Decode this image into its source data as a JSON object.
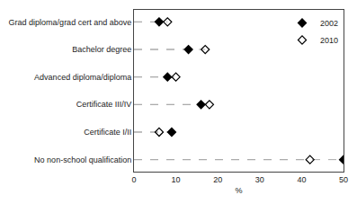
{
  "chart_data": {
    "type": "dot",
    "xlabel": "%",
    "categories": [
      "Grad diploma/grad cert and above",
      "Bachelor degree",
      "Advanced diploma/diploma",
      "Certificate III/IV",
      "Certificate I/II",
      "No non-school qualification"
    ],
    "series": [
      {
        "name": "2002",
        "color": "#000000",
        "marker": "diamond",
        "values": [
          6,
          13,
          8,
          16,
          9,
          50
        ]
      },
      {
        "name": "2010",
        "color": "#000000",
        "marker": "diamond-open",
        "values": [
          8,
          17,
          10,
          18,
          6,
          42
        ]
      }
    ],
    "color": "#aaaaaa",
    "line_style": "dashed",
    "xlim": [
      0,
      50
    ],
    "xticks": [
      0,
      10,
      20,
      30,
      40,
      50
    ],
    "grid": false,
    "legend": "upper right"
  }
}
